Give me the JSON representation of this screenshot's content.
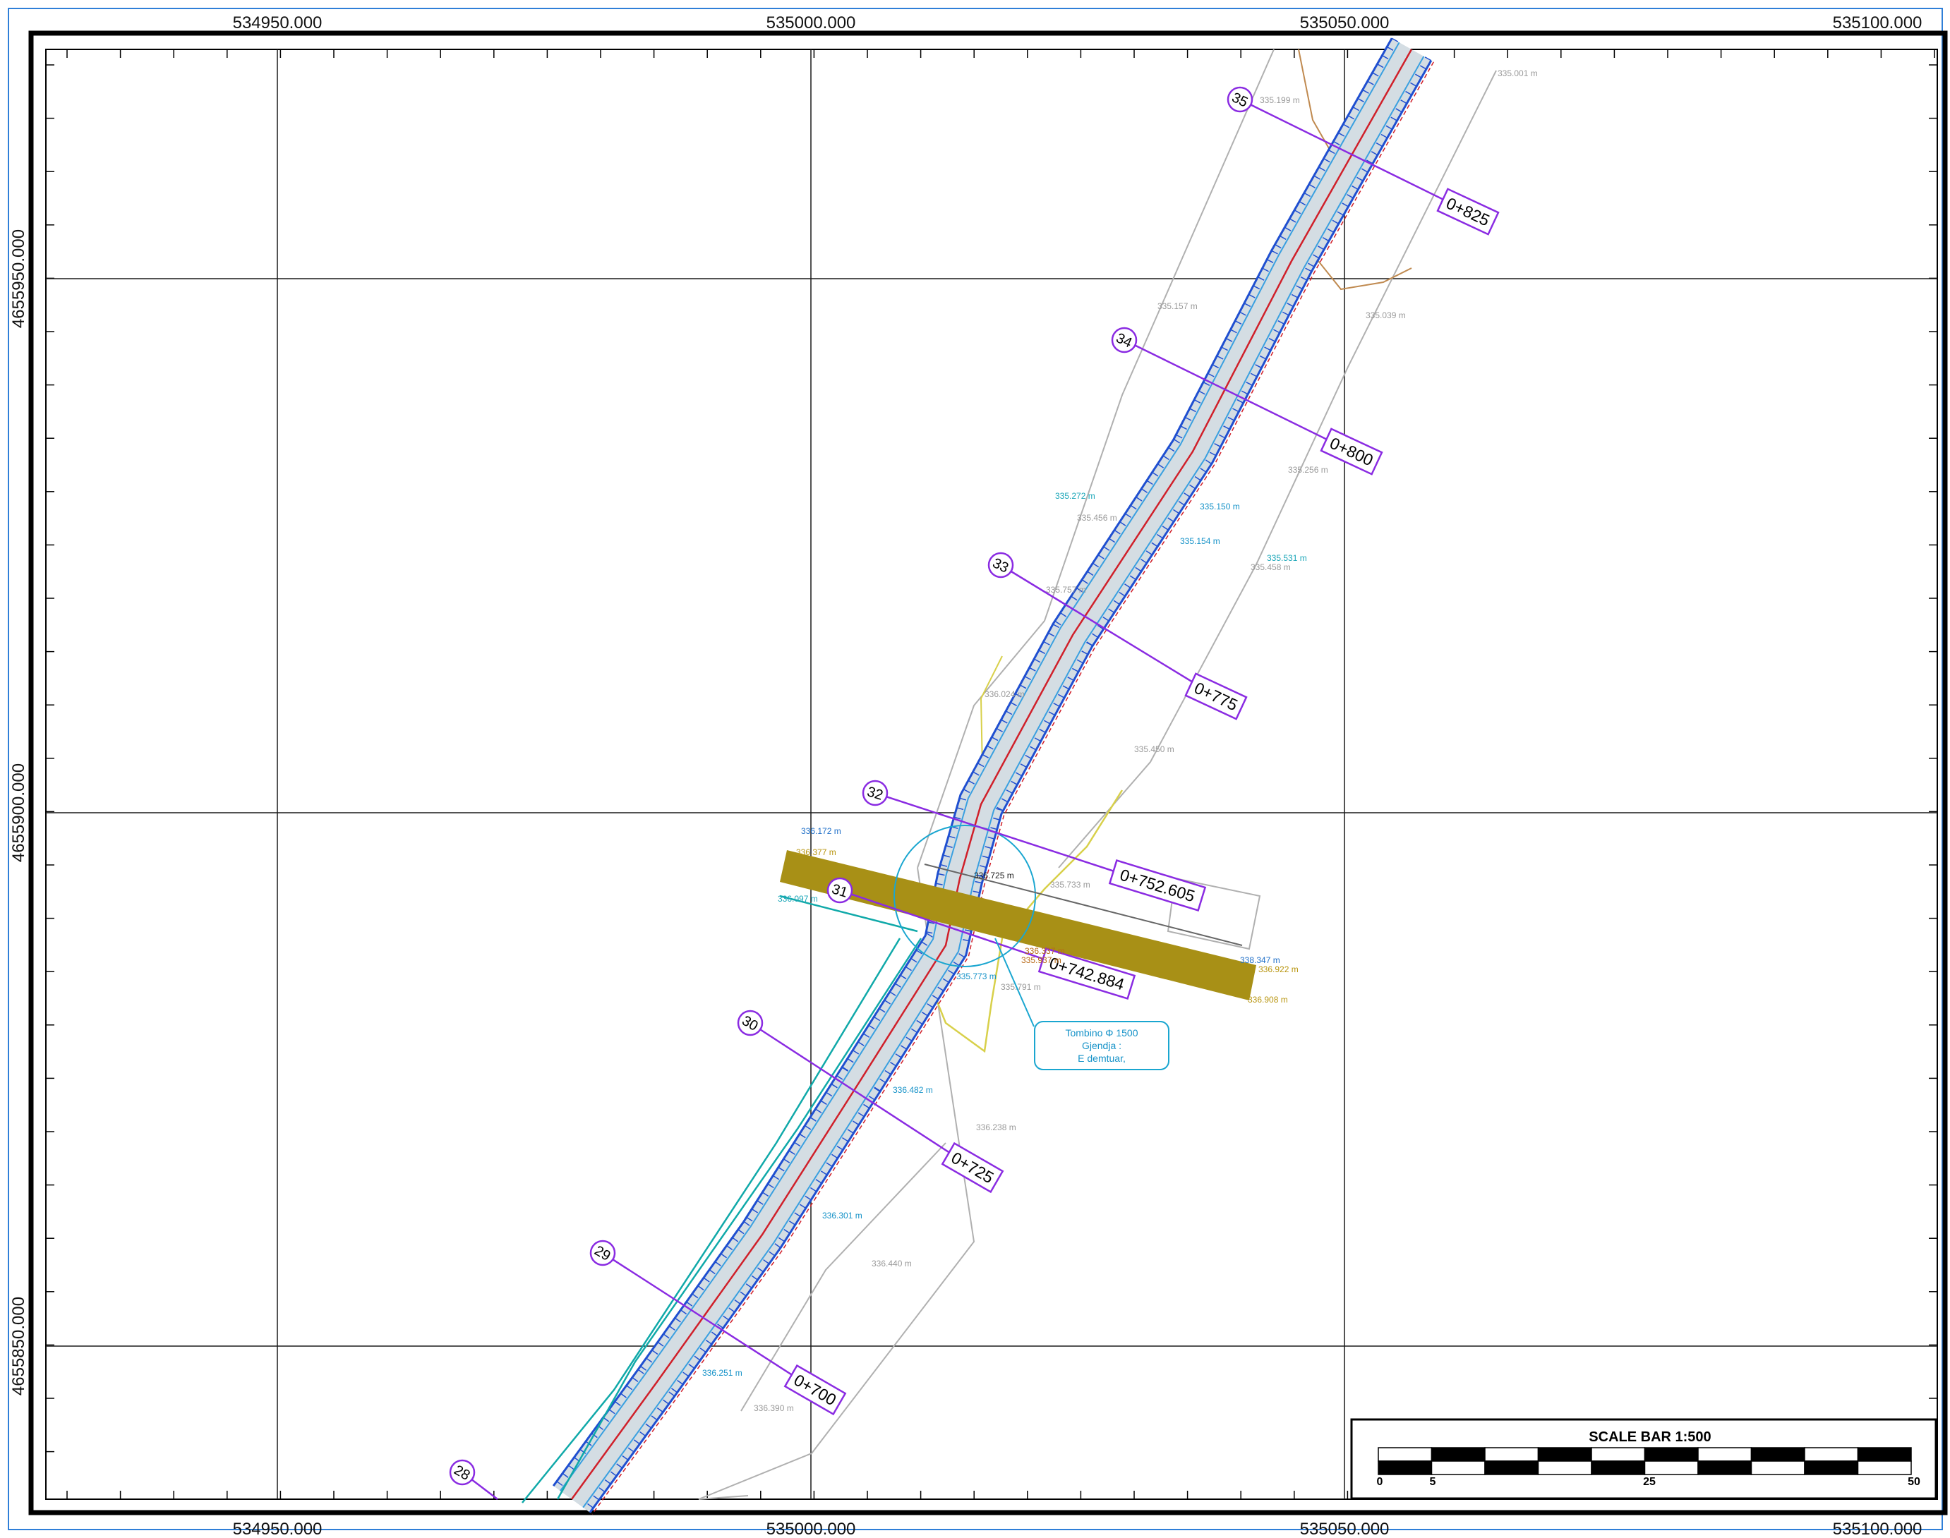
{
  "map": {
    "easting_labels": [
      "534950.000",
      "535000.000",
      "535050.000",
      "535100.000"
    ],
    "northing_labels": [
      "4655950.000",
      "4655900.000",
      "4655850.000"
    ],
    "scale_bar": {
      "title": "SCALE BAR 1:500",
      "ticks": [
        "0",
        "5",
        "25",
        "50"
      ]
    },
    "profiles": [
      {
        "number": "35",
        "station": "0+825"
      },
      {
        "number": "34",
        "station": "0+800"
      },
      {
        "number": "33",
        "station": "0+775"
      },
      {
        "number": "32",
        "station": "0+752.605"
      },
      {
        "number": "31",
        "station": "0+742.884"
      },
      {
        "number": "30",
        "station": "0+725"
      },
      {
        "number": "29",
        "station": "0+700"
      },
      {
        "number": "28",
        "station": ""
      }
    ],
    "note": {
      "lines": [
        "Tombino Φ 1500",
        "Gjendja :",
        "E demtuar,"
      ]
    },
    "elevations": [
      {
        "text": "335.001 m",
        "color": "#9a9a9a"
      },
      {
        "text": "335.199 m",
        "color": "#9a9a9a"
      },
      {
        "text": "335.157 m",
        "color": "#9a9a9a"
      },
      {
        "text": "335.039 m",
        "color": "#9a9a9a"
      },
      {
        "text": "335.256 m",
        "color": "#9a9a9a"
      },
      {
        "text": "335.272 m",
        "color": "#1aa6b8"
      },
      {
        "text": "335.456 m",
        "color": "#9a9a9a"
      },
      {
        "text": "335.531 m",
        "color": "#1aa6b8"
      },
      {
        "text": "335.458 m",
        "color": "#9a9a9a"
      },
      {
        "text": "335.757 m",
        "color": "#9a9a9a"
      },
      {
        "text": "336.024 m",
        "color": "#9a9a9a"
      },
      {
        "text": "335.450 m",
        "color": "#9a9a9a"
      },
      {
        "text": "336.172 m",
        "color": "#1f6fc8"
      },
      {
        "text": "336.377 m",
        "color": "#b8950f"
      },
      {
        "text": "336.097 m",
        "color": "#1aa6b8"
      },
      {
        "text": "336.337 m",
        "color": "#b86a18"
      },
      {
        "text": "335.937 m",
        "color": "#b86a18"
      },
      {
        "text": "335.791 m",
        "color": "#9a9a9a"
      },
      {
        "text": "335.733 m",
        "color": "#9a9a9a"
      },
      {
        "text": "338.347 m",
        "color": "#1f6fc8"
      },
      {
        "text": "336.922 m",
        "color": "#b8950f"
      },
      {
        "text": "336.908 m",
        "color": "#b8950f"
      },
      {
        "text": "336.238 m",
        "color": "#9a9a9a"
      },
      {
        "text": "336.482 m",
        "color": "#1592c8"
      },
      {
        "text": "336.440 m",
        "color": "#9a9a9a"
      },
      {
        "text": "336.301 m",
        "color": "#1592c8"
      },
      {
        "text": "336.251 m",
        "color": "#1592c8"
      },
      {
        "text": "336.390 m",
        "color": "#9a9a9a"
      },
      {
        "text": "335.150 m",
        "color": "#1592c8"
      },
      {
        "text": "335.154 m",
        "color": "#1592c8"
      },
      {
        "text": "335.773 m",
        "color": "#1592c8"
      },
      {
        "text": "336.725 m",
        "color": "#222222"
      }
    ]
  },
  "colors": {
    "grid": "#1a1a1a",
    "road_edge": "#1f4fd0",
    "road_fill": "#d4dde3",
    "centerline": "#d0202a",
    "profile_line": "#8a2be2",
    "culvert_band": "#a89016",
    "terrain_line": "#b0b0b0",
    "ditch": "#10a9a9",
    "stream": "#d8d04a"
  }
}
